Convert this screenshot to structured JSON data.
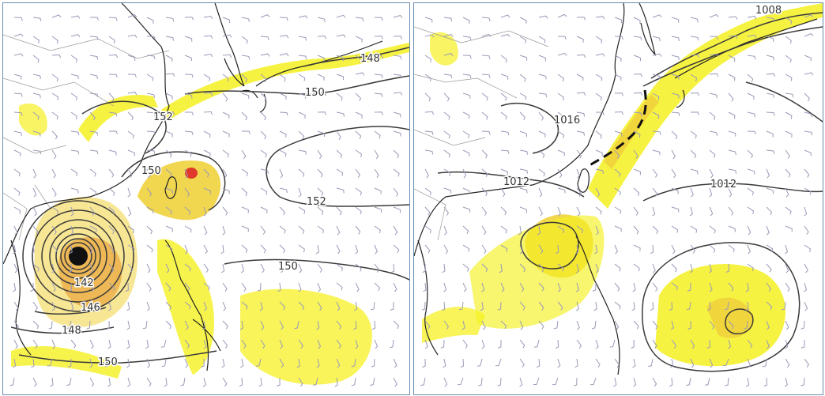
{
  "colors": {
    "precip_light": "#f5f021",
    "precip_mid": "#f0d23c",
    "precip_heavy": "#e8a43a",
    "precip_core": "#e0392b",
    "contour": "#3a3a3a",
    "barb": "#9a9ab8",
    "panel_border": "#6b8cae"
  },
  "left_panel": {
    "field": "geopotential height contours with wind barbs and precipitation shading",
    "contour_labels": [
      "148",
      "150",
      "152",
      "150",
      "152",
      "150",
      "142",
      "146",
      "148",
      "150"
    ]
  },
  "right_panel": {
    "field": "sea-level pressure isobars with wind barbs and precipitation shading",
    "contour_labels": [
      "1008",
      "1016",
      "1012",
      "1012"
    ],
    "front_style": "dashed"
  }
}
